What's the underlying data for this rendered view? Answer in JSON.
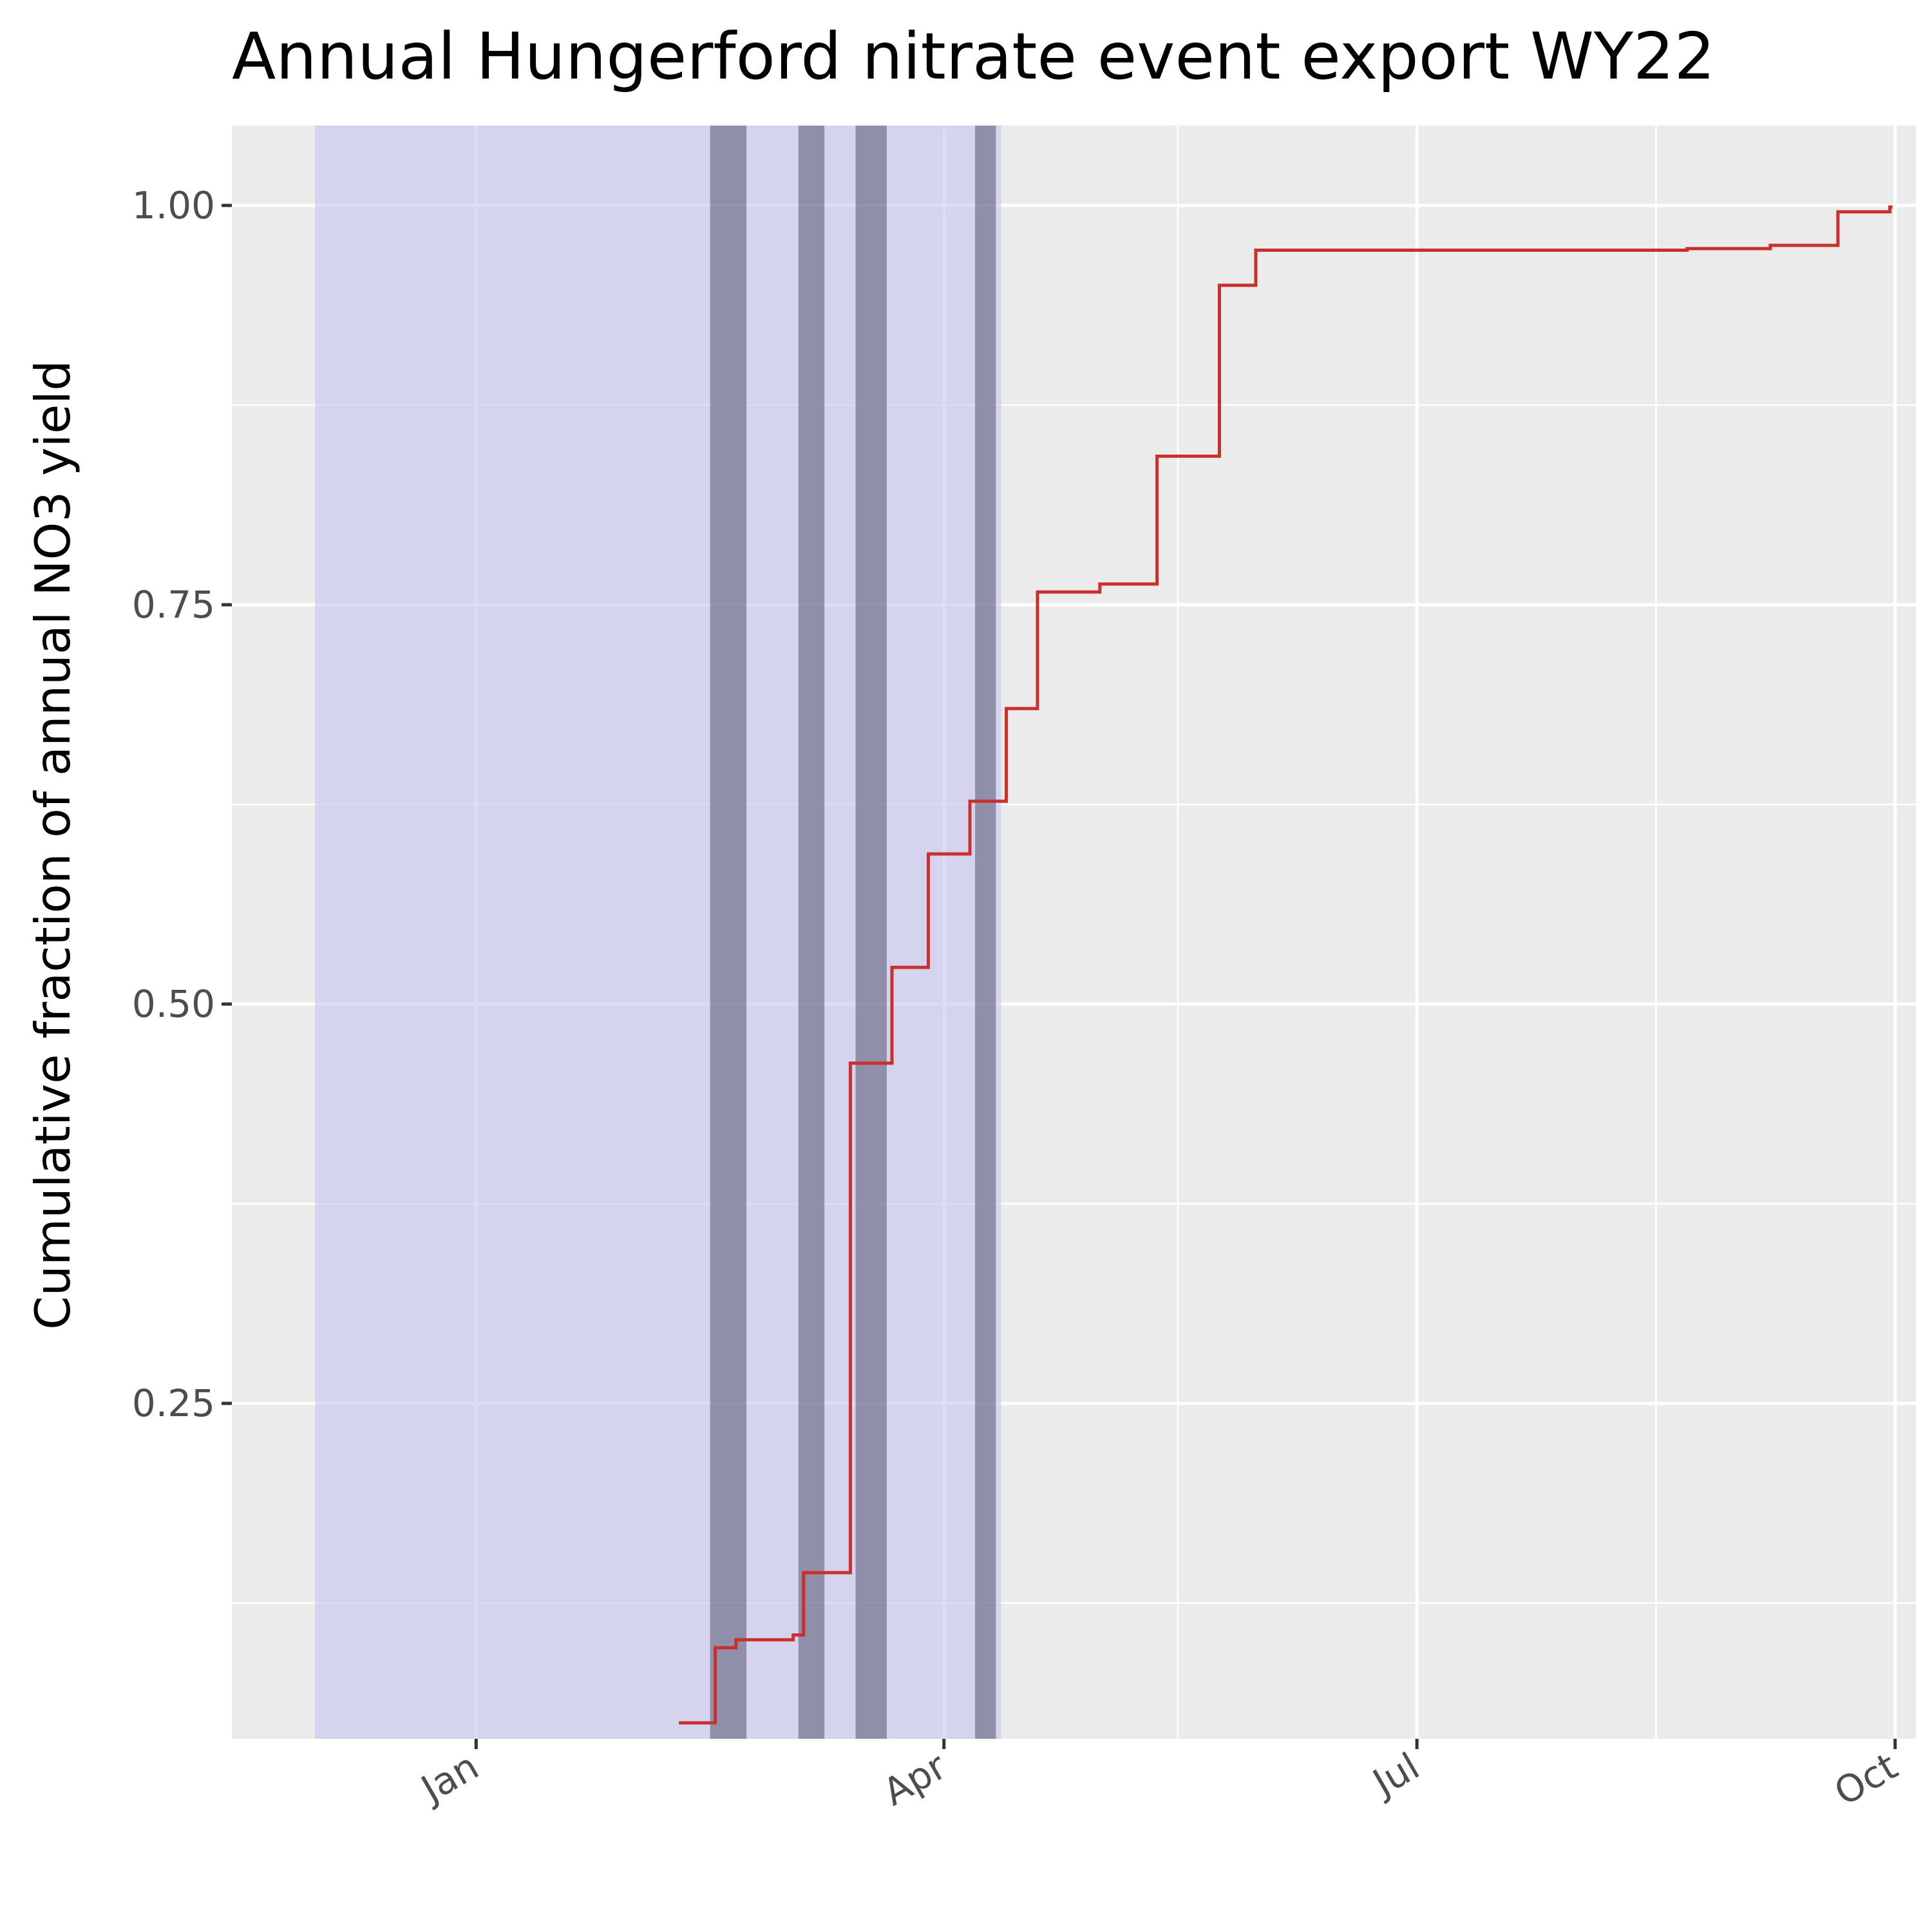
{
  "chart_data": {
    "type": "line",
    "title": "Annual Hungerford nitrate event export WY22",
    "xlabel": "",
    "ylabel": "Cumulative fraction of annual NO3 yield",
    "x_type": "date",
    "xlim": [
      "2021-11-15",
      "2022-10-05"
    ],
    "ylim": [
      0.04,
      1.05
    ],
    "x_ticks": [
      {
        "date": "2022-01-01",
        "label": "Jan"
      },
      {
        "date": "2022-04-01",
        "label": "Apr"
      },
      {
        "date": "2022-07-01",
        "label": "Jul"
      },
      {
        "date": "2022-10-01",
        "label": "Oct"
      }
    ],
    "y_ticks": [
      {
        "value": 0.25,
        "label": "0.25"
      },
      {
        "value": 0.5,
        "label": "0.50"
      },
      {
        "value": 0.75,
        "label": "0.75"
      },
      {
        "value": 1.0,
        "label": "1.00"
      }
    ],
    "grid": true,
    "shaded_periods": [
      {
        "start": "2021-12-01",
        "end": "2022-04-12",
        "color": "#c5c5f0",
        "opacity": 0.6
      }
    ],
    "event_bands": [
      {
        "start": "2022-02-15",
        "end": "2022-02-22"
      },
      {
        "start": "2022-03-04",
        "end": "2022-03-09"
      },
      {
        "start": "2022-03-15",
        "end": "2022-03-21"
      },
      {
        "start": "2022-04-07",
        "end": "2022-04-11"
      }
    ],
    "event_band_color": "#4a4a66",
    "series": [
      {
        "type": "step",
        "color": "#c9302c",
        "points": [
          {
            "date": "2022-02-09",
            "value": 0.05
          },
          {
            "date": "2022-02-16",
            "value": 0.097
          },
          {
            "date": "2022-02-20",
            "value": 0.102
          },
          {
            "date": "2022-03-03",
            "value": 0.105
          },
          {
            "date": "2022-03-05",
            "value": 0.144
          },
          {
            "date": "2022-03-14",
            "value": 0.463
          },
          {
            "date": "2022-03-22",
            "value": 0.523
          },
          {
            "date": "2022-03-29",
            "value": 0.594
          },
          {
            "date": "2022-04-06",
            "value": 0.627
          },
          {
            "date": "2022-04-13",
            "value": 0.685
          },
          {
            "date": "2022-04-19",
            "value": 0.758
          },
          {
            "date": "2022-05-01",
            "value": 0.763
          },
          {
            "date": "2022-05-12",
            "value": 0.843
          },
          {
            "date": "2022-05-24",
            "value": 0.95
          },
          {
            "date": "2022-05-31",
            "value": 0.972
          },
          {
            "date": "2022-08-22",
            "value": 0.973
          },
          {
            "date": "2022-09-07",
            "value": 0.975
          },
          {
            "date": "2022-09-20",
            "value": 0.996
          },
          {
            "date": "2022-09-30",
            "value": 0.999
          }
        ]
      }
    ]
  }
}
